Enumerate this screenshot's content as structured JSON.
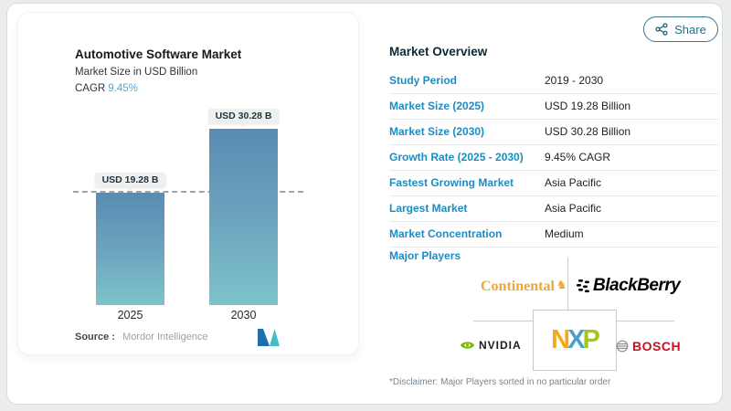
{
  "window": {
    "background": "#ebecec",
    "card_background": "#ffffff"
  },
  "share_button": {
    "label": "Share"
  },
  "chart_panel": {
    "title": "Automotive Software Market",
    "subtitle": "Market Size in USD Billion",
    "cagr_label": "CAGR",
    "cagr_value": "9.45%",
    "source_label": "Source :",
    "source_value": "Mordor Intelligence"
  },
  "chart_data": {
    "type": "bar",
    "title": "Automotive Software Market",
    "ylabel": "Market Size in USD Billion",
    "categories": [
      "2025",
      "2030"
    ],
    "values": [
      19.28,
      30.28
    ],
    "bar_labels": [
      "USD 19.28 B",
      "USD 30.28 B"
    ],
    "ylim": [
      0,
      30.28
    ],
    "reference_line_value": 19.28,
    "grid": "off",
    "legend": "none",
    "bar_color_top": "#5a8bb3",
    "bar_color_bottom": "#7dc3ca"
  },
  "overview": {
    "title": "Market Overview",
    "rows": [
      {
        "label": "Study Period",
        "value": "2019 - 2030"
      },
      {
        "label": "Market Size (2025)",
        "value": "USD 19.28 Billion"
      },
      {
        "label": "Market Size (2030)",
        "value": "USD 30.28 Billion"
      },
      {
        "label": "Growth Rate (2025 - 2030)",
        "value": "9.45% CAGR"
      },
      {
        "label": "Fastest Growing Market",
        "value": "Asia Pacific"
      },
      {
        "label": "Largest Market",
        "value": "Asia Pacific"
      },
      {
        "label": "Market Concentration",
        "value": "Medium"
      }
    ]
  },
  "major_players": {
    "title": "Major Players",
    "continental": "Continental",
    "blackberry": "BlackBerry",
    "nvidia": "NVIDIA",
    "bosch": "BOSCH",
    "nxp": {
      "n": "N",
      "x": "X",
      "p": "P"
    },
    "disclaimer": "*Disclaimer: Major Players sorted in no particular order"
  },
  "colors": {
    "label_blue": "#1b8dc2",
    "heading_navy": "#0e2733",
    "cagr_teal": "#4da9db",
    "share_border": "#3a7390",
    "bosch_red": "#cc0e1d",
    "continental_gold": "#eda735",
    "nvidia_green": "#76b900",
    "nxp_orange": "#f9a51a",
    "nxp_blue": "#4aa0c8",
    "nxp_green": "#a5c71d"
  }
}
